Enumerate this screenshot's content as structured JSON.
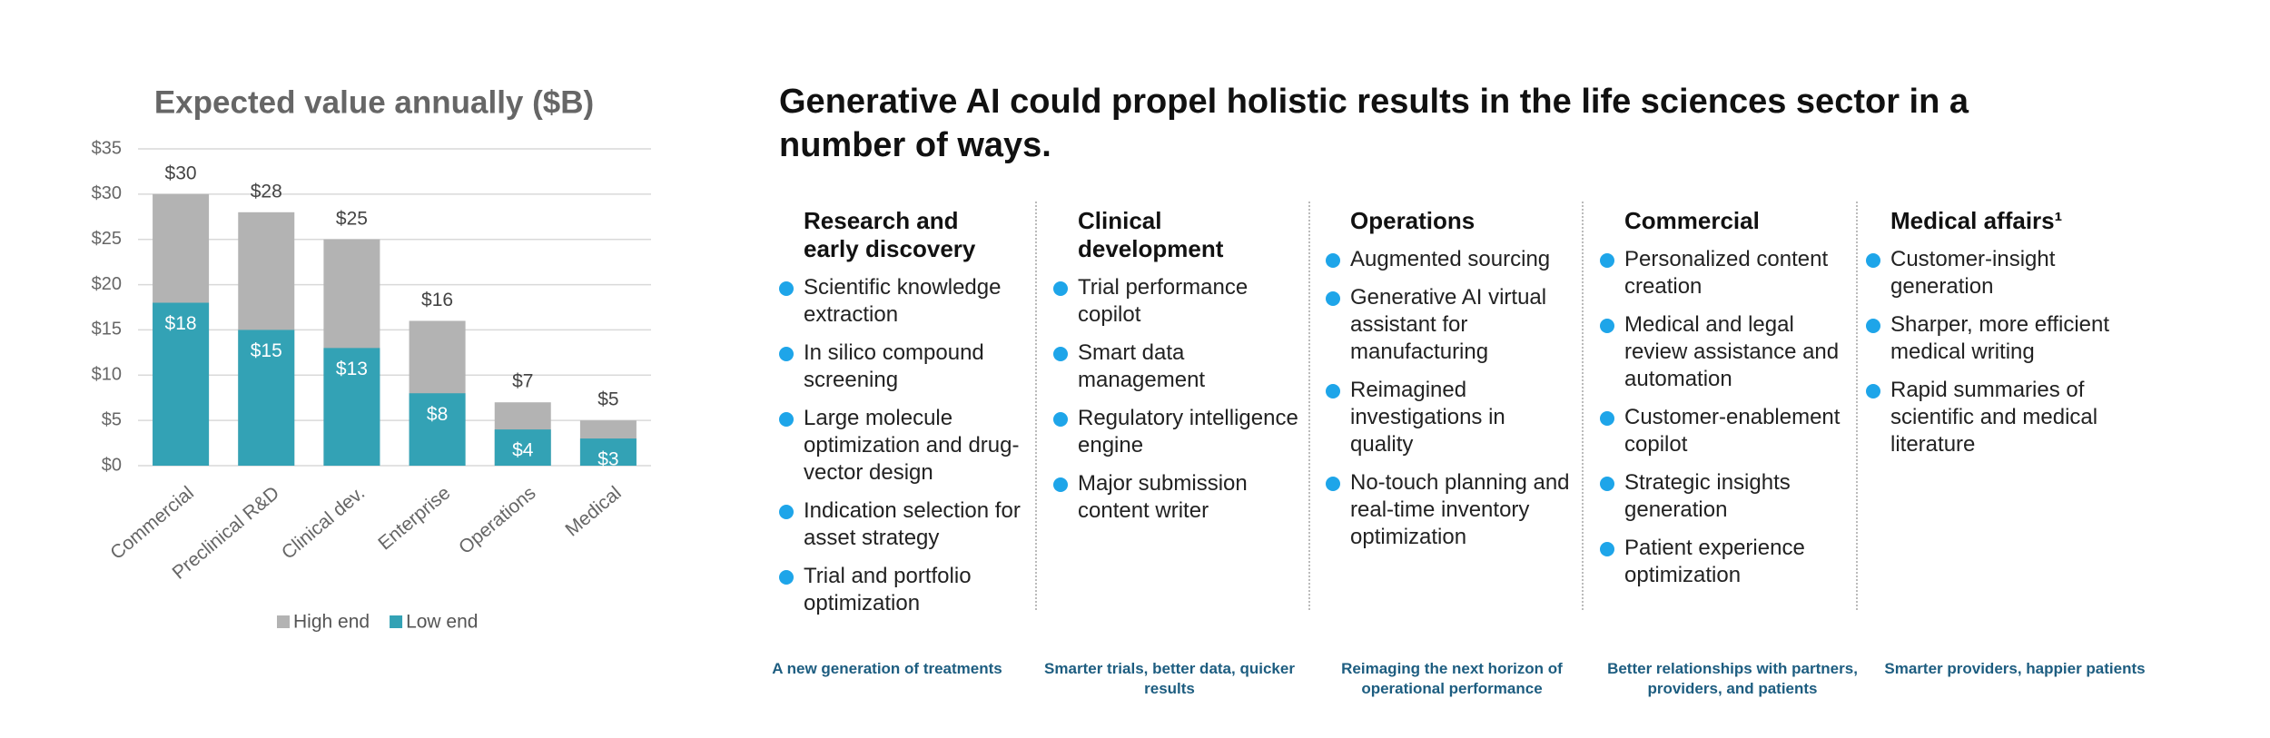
{
  "chart_data": {
    "type": "bar",
    "title": "Expected value annually ($B)",
    "categories": [
      "Commercial",
      "Preclinical R&D",
      "Clinical dev.",
      "Enterprise",
      "Operations",
      "Medical"
    ],
    "series": [
      {
        "name": "High end",
        "color": "#b3b3b3",
        "values": [
          30,
          28,
          25,
          16,
          7,
          5
        ],
        "value_labels": [
          "$30",
          "$28",
          "$25",
          "$16",
          "$7",
          "$5"
        ]
      },
      {
        "name": "Low end",
        "color": "#33a2b5",
        "values": [
          18,
          15,
          13,
          8,
          4,
          3
        ],
        "value_labels": [
          "$18",
          "$15",
          "$13",
          "$8",
          "$4",
          "$3"
        ]
      }
    ],
    "ylim": [
      0,
      35
    ],
    "yticks": [
      {
        "value": 0,
        "label": "$0"
      },
      {
        "value": 5,
        "label": "$5"
      },
      {
        "value": 10,
        "label": "$10"
      },
      {
        "value": 15,
        "label": "$15"
      },
      {
        "value": 20,
        "label": "$20"
      },
      {
        "value": 25,
        "label": "$25"
      },
      {
        "value": 30,
        "label": "$30"
      },
      {
        "value": 35,
        "label": "$35"
      }
    ],
    "grid": true
  },
  "panel": {
    "title": "Generative AI could propel holistic results in the life sciences sector in a number of ways.",
    "columns": [
      {
        "heading": "Research and early discovery",
        "items": [
          "Scientific knowledge extraction",
          "In silico compound screening",
          "Large molecule optimization and drug-vector design",
          "Indication selection for asset strategy",
          "Trial and portfolio optimization"
        ],
        "tagline": "A new generation of treatments"
      },
      {
        "heading": "Clinical development",
        "items": [
          "Trial performance copilot",
          "Smart data management",
          "Regulatory intelligence engine",
          "Major submission content writer"
        ],
        "tagline": "Smarter trials, better data, quicker results"
      },
      {
        "heading": "Operations",
        "items": [
          "Augmented sourcing",
          "Generative AI virtual assistant for manufacturing",
          "Reimagined investigations in quality",
          "No-touch planning and real-time inventory optimization"
        ],
        "tagline": "Reimaging the next horizon of operational performance"
      },
      {
        "heading": "Commercial",
        "items": [
          "Personalized content creation",
          "Medical and legal review assistance and automation",
          "Customer-enablement copilot",
          "Strategic insights generation",
          "Patient experience optimization"
        ],
        "tagline": "Better relationships with partners, providers, and patients"
      },
      {
        "heading": "Medical affairs¹",
        "items": [
          "Customer-insight generation",
          "Sharper, more efficient medical writing",
          "Rapid summaries of scientific and medical literature"
        ],
        "tagline": "Smarter providers, happier patients"
      }
    ]
  }
}
